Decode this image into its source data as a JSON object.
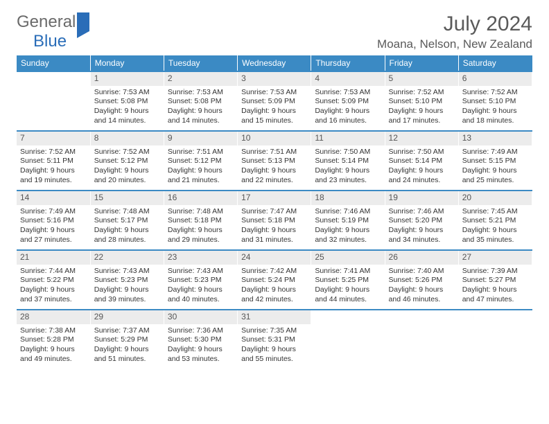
{
  "brand": {
    "part1": "General",
    "part2": "Blue"
  },
  "title": {
    "month": "July 2024",
    "location": "Moana, Nelson, New Zealand"
  },
  "colors": {
    "header_bg": "#3b8ac4",
    "header_text": "#ffffff",
    "daynum_bg": "#ececec",
    "row_border": "#3b8ac4",
    "text": "#333333",
    "muted": "#5a5a5a"
  },
  "fonts": {
    "base": "Arial",
    "title_size": 30,
    "loc_size": 17,
    "header_size": 12,
    "cell_size": 10.5
  },
  "days": [
    "Sunday",
    "Monday",
    "Tuesday",
    "Wednesday",
    "Thursday",
    "Friday",
    "Saturday"
  ],
  "weeks": [
    [
      {
        "n": "",
        "sunrise": "",
        "sunset": "",
        "daylight": ""
      },
      {
        "n": "1",
        "sunrise": "Sunrise: 7:53 AM",
        "sunset": "Sunset: 5:08 PM",
        "daylight": "Daylight: 9 hours and 14 minutes."
      },
      {
        "n": "2",
        "sunrise": "Sunrise: 7:53 AM",
        "sunset": "Sunset: 5:08 PM",
        "daylight": "Daylight: 9 hours and 14 minutes."
      },
      {
        "n": "3",
        "sunrise": "Sunrise: 7:53 AM",
        "sunset": "Sunset: 5:09 PM",
        "daylight": "Daylight: 9 hours and 15 minutes."
      },
      {
        "n": "4",
        "sunrise": "Sunrise: 7:53 AM",
        "sunset": "Sunset: 5:09 PM",
        "daylight": "Daylight: 9 hours and 16 minutes."
      },
      {
        "n": "5",
        "sunrise": "Sunrise: 7:52 AM",
        "sunset": "Sunset: 5:10 PM",
        "daylight": "Daylight: 9 hours and 17 minutes."
      },
      {
        "n": "6",
        "sunrise": "Sunrise: 7:52 AM",
        "sunset": "Sunset: 5:10 PM",
        "daylight": "Daylight: 9 hours and 18 minutes."
      }
    ],
    [
      {
        "n": "7",
        "sunrise": "Sunrise: 7:52 AM",
        "sunset": "Sunset: 5:11 PM",
        "daylight": "Daylight: 9 hours and 19 minutes."
      },
      {
        "n": "8",
        "sunrise": "Sunrise: 7:52 AM",
        "sunset": "Sunset: 5:12 PM",
        "daylight": "Daylight: 9 hours and 20 minutes."
      },
      {
        "n": "9",
        "sunrise": "Sunrise: 7:51 AM",
        "sunset": "Sunset: 5:12 PM",
        "daylight": "Daylight: 9 hours and 21 minutes."
      },
      {
        "n": "10",
        "sunrise": "Sunrise: 7:51 AM",
        "sunset": "Sunset: 5:13 PM",
        "daylight": "Daylight: 9 hours and 22 minutes."
      },
      {
        "n": "11",
        "sunrise": "Sunrise: 7:50 AM",
        "sunset": "Sunset: 5:14 PM",
        "daylight": "Daylight: 9 hours and 23 minutes."
      },
      {
        "n": "12",
        "sunrise": "Sunrise: 7:50 AM",
        "sunset": "Sunset: 5:14 PM",
        "daylight": "Daylight: 9 hours and 24 minutes."
      },
      {
        "n": "13",
        "sunrise": "Sunrise: 7:49 AM",
        "sunset": "Sunset: 5:15 PM",
        "daylight": "Daylight: 9 hours and 25 minutes."
      }
    ],
    [
      {
        "n": "14",
        "sunrise": "Sunrise: 7:49 AM",
        "sunset": "Sunset: 5:16 PM",
        "daylight": "Daylight: 9 hours and 27 minutes."
      },
      {
        "n": "15",
        "sunrise": "Sunrise: 7:48 AM",
        "sunset": "Sunset: 5:17 PM",
        "daylight": "Daylight: 9 hours and 28 minutes."
      },
      {
        "n": "16",
        "sunrise": "Sunrise: 7:48 AM",
        "sunset": "Sunset: 5:18 PM",
        "daylight": "Daylight: 9 hours and 29 minutes."
      },
      {
        "n": "17",
        "sunrise": "Sunrise: 7:47 AM",
        "sunset": "Sunset: 5:18 PM",
        "daylight": "Daylight: 9 hours and 31 minutes."
      },
      {
        "n": "18",
        "sunrise": "Sunrise: 7:46 AM",
        "sunset": "Sunset: 5:19 PM",
        "daylight": "Daylight: 9 hours and 32 minutes."
      },
      {
        "n": "19",
        "sunrise": "Sunrise: 7:46 AM",
        "sunset": "Sunset: 5:20 PM",
        "daylight": "Daylight: 9 hours and 34 minutes."
      },
      {
        "n": "20",
        "sunrise": "Sunrise: 7:45 AM",
        "sunset": "Sunset: 5:21 PM",
        "daylight": "Daylight: 9 hours and 35 minutes."
      }
    ],
    [
      {
        "n": "21",
        "sunrise": "Sunrise: 7:44 AM",
        "sunset": "Sunset: 5:22 PM",
        "daylight": "Daylight: 9 hours and 37 minutes."
      },
      {
        "n": "22",
        "sunrise": "Sunrise: 7:43 AM",
        "sunset": "Sunset: 5:23 PM",
        "daylight": "Daylight: 9 hours and 39 minutes."
      },
      {
        "n": "23",
        "sunrise": "Sunrise: 7:43 AM",
        "sunset": "Sunset: 5:23 PM",
        "daylight": "Daylight: 9 hours and 40 minutes."
      },
      {
        "n": "24",
        "sunrise": "Sunrise: 7:42 AM",
        "sunset": "Sunset: 5:24 PM",
        "daylight": "Daylight: 9 hours and 42 minutes."
      },
      {
        "n": "25",
        "sunrise": "Sunrise: 7:41 AM",
        "sunset": "Sunset: 5:25 PM",
        "daylight": "Daylight: 9 hours and 44 minutes."
      },
      {
        "n": "26",
        "sunrise": "Sunrise: 7:40 AM",
        "sunset": "Sunset: 5:26 PM",
        "daylight": "Daylight: 9 hours and 46 minutes."
      },
      {
        "n": "27",
        "sunrise": "Sunrise: 7:39 AM",
        "sunset": "Sunset: 5:27 PM",
        "daylight": "Daylight: 9 hours and 47 minutes."
      }
    ],
    [
      {
        "n": "28",
        "sunrise": "Sunrise: 7:38 AM",
        "sunset": "Sunset: 5:28 PM",
        "daylight": "Daylight: 9 hours and 49 minutes."
      },
      {
        "n": "29",
        "sunrise": "Sunrise: 7:37 AM",
        "sunset": "Sunset: 5:29 PM",
        "daylight": "Daylight: 9 hours and 51 minutes."
      },
      {
        "n": "30",
        "sunrise": "Sunrise: 7:36 AM",
        "sunset": "Sunset: 5:30 PM",
        "daylight": "Daylight: 9 hours and 53 minutes."
      },
      {
        "n": "31",
        "sunrise": "Sunrise: 7:35 AM",
        "sunset": "Sunset: 5:31 PM",
        "daylight": "Daylight: 9 hours and 55 minutes."
      },
      {
        "n": "",
        "sunrise": "",
        "sunset": "",
        "daylight": ""
      },
      {
        "n": "",
        "sunrise": "",
        "sunset": "",
        "daylight": ""
      },
      {
        "n": "",
        "sunrise": "",
        "sunset": "",
        "daylight": ""
      }
    ]
  ]
}
